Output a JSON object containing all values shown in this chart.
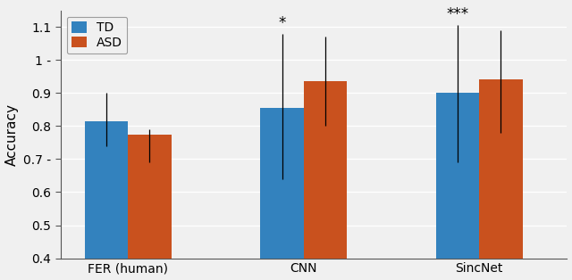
{
  "groups": [
    "FER (human)",
    "CNN",
    "SincNet"
  ],
  "td_values": [
    0.815,
    0.855,
    0.9
  ],
  "asd_values": [
    0.775,
    0.935,
    0.94
  ],
  "td_yerr_low": [
    0.075,
    0.215,
    0.21
  ],
  "td_yerr_high": [
    0.085,
    0.225,
    0.205
  ],
  "asd_yerr_low": [
    0.085,
    0.135,
    0.16
  ],
  "asd_yerr_high": [
    0.015,
    0.135,
    0.15
  ],
  "td_color": "#3382be",
  "asd_color": "#c9511e",
  "ylabel": "Accuracy",
  "ylim": [
    0.4,
    1.15
  ],
  "yticks": [
    0.4,
    0.5,
    0.6,
    0.7,
    0.8,
    0.9,
    1.0,
    1.1
  ],
  "ytick_labels": [
    "0.4",
    "0.5",
    "0.6",
    "0.7 -",
    "0.8",
    "0.9",
    "1 -",
    "1.1"
  ],
  "significance": [
    "",
    "*",
    "***"
  ],
  "bar_width": 0.32,
  "x_positions": [
    0.5,
    1.8,
    3.1
  ],
  "legend_labels": [
    "TD",
    "ASD"
  ],
  "bg_color": "#f0f0f0",
  "grid_color": "#ffffff",
  "sig_fontsize": 12
}
